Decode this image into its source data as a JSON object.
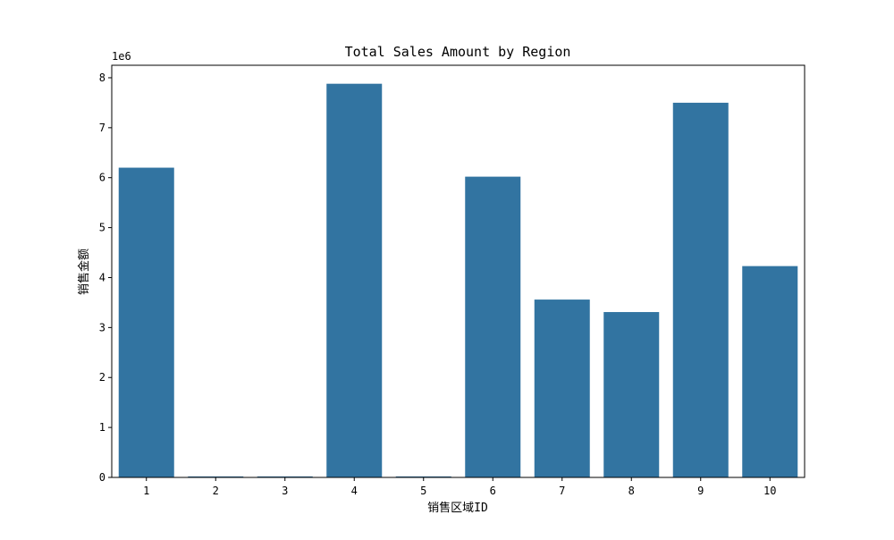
{
  "chart_data": {
    "type": "bar",
    "title": "Total Sales Amount by Region",
    "xlabel": "销售区域ID",
    "ylabel": "销售金额",
    "y_offset_label": "1e6",
    "categories": [
      "1",
      "2",
      "3",
      "4",
      "5",
      "6",
      "7",
      "8",
      "9",
      "10"
    ],
    "values": [
      6200000,
      20000,
      20000,
      7880000,
      20000,
      6020000,
      3560000,
      3310000,
      7500000,
      4230000
    ],
    "ylim": [
      0,
      8250000
    ],
    "yticks": [
      0,
      1000000,
      2000000,
      3000000,
      4000000,
      5000000,
      6000000,
      7000000,
      8000000
    ],
    "ytick_labels": [
      "0",
      "1",
      "2",
      "3",
      "4",
      "5",
      "6",
      "7",
      "8"
    ],
    "grid": false,
    "legend": "none",
    "colors": {
      "bar": "#3274a1",
      "axis": "#000000",
      "background": "#ffffff"
    }
  }
}
